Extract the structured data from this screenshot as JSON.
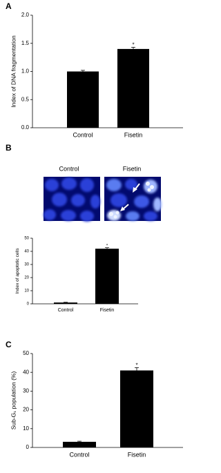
{
  "chart_data": [
    {
      "type": "bar",
      "panel": "A",
      "ylabel": "Index of DNA fragmentation",
      "categories": [
        "Control",
        "Fisetin"
      ],
      "values": [
        1.0,
        1.4
      ],
      "errors": [
        0.02,
        0.03
      ],
      "color": "#000000",
      "annotations": [
        {
          "category": 1,
          "text": "*"
        }
      ],
      "ylim": [
        0,
        2
      ],
      "yticks": [
        {
          "value": 0,
          "label": "0.0"
        },
        {
          "value": 0.5,
          "label": "0.5"
        },
        {
          "value": 1,
          "label": "1.0"
        },
        {
          "value": 1.5,
          "label": "1.5"
        },
        {
          "value": 2,
          "label": "2.0"
        }
      ]
    },
    {
      "type": "bar",
      "panel": "B",
      "ylabel": "Index of apoptotic cells",
      "categories": [
        "Control",
        "Fisetin"
      ],
      "values": [
        1,
        42
      ],
      "errors": [
        0.2,
        0.8
      ],
      "color": "#000000",
      "annotations": [
        {
          "category": 1,
          "text": "*"
        }
      ],
      "ylim": [
        0,
        50
      ],
      "yticks": [
        0,
        10,
        20,
        30,
        40,
        50
      ]
    },
    {
      "type": "bar",
      "panel": "C",
      "ylabel": "Sub-G₁ population (%)",
      "categories": [
        "Control",
        "Fisetin"
      ],
      "values": [
        3,
        41
      ],
      "errors": [
        0.3,
        1.5
      ],
      "color": "#000000",
      "annotations": [
        {
          "category": 1,
          "text": "*"
        }
      ],
      "ylim": [
        0,
        50
      ],
      "yticks": [
        0,
        10,
        20,
        30,
        40,
        50
      ]
    }
  ],
  "image_labels": [
    "Control",
    "Fisetin"
  ]
}
